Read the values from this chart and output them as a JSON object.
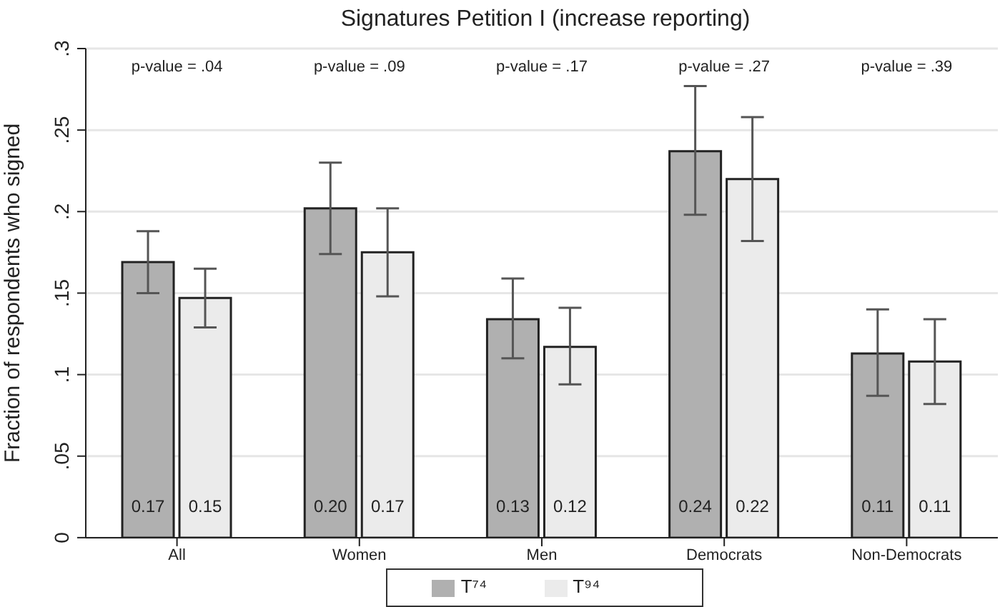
{
  "chart_data": {
    "type": "bar",
    "title": "Signatures Petition I (increase reporting)",
    "ylabel": "Fraction of respondents who signed",
    "categories": [
      "All",
      "Women",
      "Men",
      "Democrats",
      "Non-Democrats"
    ],
    "series": [
      {
        "name": "T⁷⁴",
        "color": "#b0b0b0",
        "values": [
          0.169,
          0.202,
          0.134,
          0.237,
          0.113
        ],
        "errors": [
          [
            0.15,
            0.188
          ],
          [
            0.174,
            0.23
          ],
          [
            0.11,
            0.159
          ],
          [
            0.198,
            0.277
          ],
          [
            0.087,
            0.14
          ]
        ],
        "value_labels": [
          "0.17",
          "0.20",
          "0.13",
          "0.24",
          "0.11"
        ]
      },
      {
        "name": "T⁹⁴",
        "color": "#ebebeb",
        "values": [
          0.147,
          0.175,
          0.117,
          0.22,
          0.108
        ],
        "errors": [
          [
            0.129,
            0.165
          ],
          [
            0.148,
            0.202
          ],
          [
            0.094,
            0.141
          ],
          [
            0.182,
            0.258
          ],
          [
            0.082,
            0.134
          ]
        ],
        "value_labels": [
          "0.15",
          "0.17",
          "0.12",
          "0.22",
          "0.11"
        ]
      }
    ],
    "ylim": [
      0,
      0.3
    ],
    "yticks": [
      {
        "value": 0,
        "label": "0"
      },
      {
        "value": 0.05,
        "label": ".05"
      },
      {
        "value": 0.1,
        "label": ".1"
      },
      {
        "value": 0.15,
        "label": ".15"
      },
      {
        "value": 0.2,
        "label": ".2"
      },
      {
        "value": 0.25,
        "label": ".25"
      },
      {
        "value": 0.3,
        "label": ".3"
      }
    ],
    "annotations": [
      "p-value = .04",
      "p-value = .09",
      "p-value = .17",
      "p-value = .27",
      "p-value = .39"
    ],
    "grid": "y",
    "legend": "bottom"
  }
}
